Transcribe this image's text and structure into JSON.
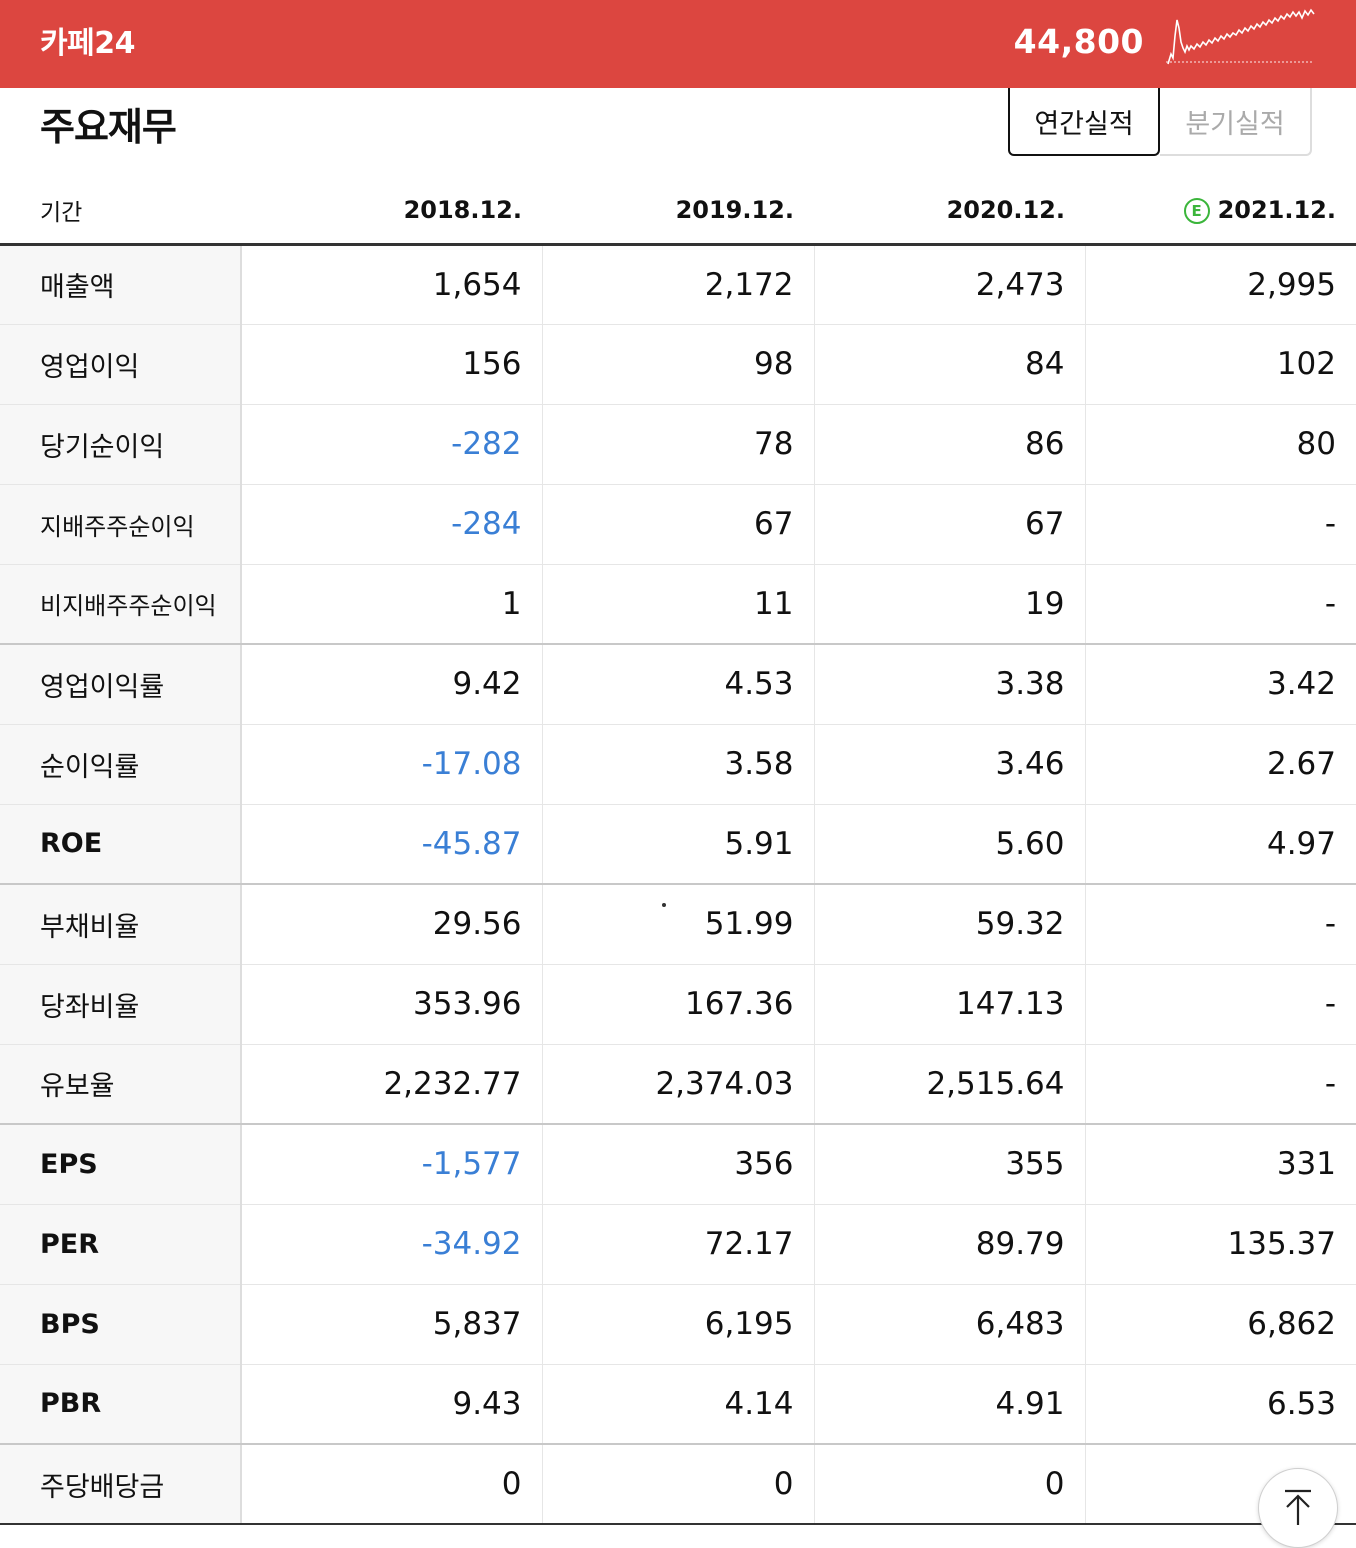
{
  "header": {
    "stock_name": "카페24",
    "price": "44,800"
  },
  "section": {
    "title": "주요재무",
    "tabs": [
      "연간실적",
      "분기실적"
    ]
  },
  "table": {
    "period_label": "기간",
    "estimate_badge": "E",
    "columns": [
      "2018.12.",
      "2019.12.",
      "2020.12.",
      "2021.12."
    ],
    "rows": [
      {
        "label": "매출액",
        "values": [
          "1,654",
          "2,172",
          "2,473",
          "2,995"
        ]
      },
      {
        "label": "영업이익",
        "values": [
          "156",
          "98",
          "84",
          "102"
        ]
      },
      {
        "label": "당기순이익",
        "values": [
          "-282",
          "78",
          "86",
          "80"
        ]
      },
      {
        "label": "지배주주순이익",
        "values": [
          "-284",
          "67",
          "67",
          "-"
        ]
      },
      {
        "label": "비지배주주순이익",
        "values": [
          "1",
          "11",
          "19",
          "-"
        ]
      },
      {
        "label": "영업이익률",
        "values": [
          "9.42",
          "4.53",
          "3.38",
          "3.42"
        ]
      },
      {
        "label": "순이익률",
        "values": [
          "-17.08",
          "3.58",
          "3.46",
          "2.67"
        ]
      },
      {
        "label": "ROE",
        "values": [
          "-45.87",
          "5.91",
          "5.60",
          "4.97"
        ]
      },
      {
        "label": "부채비율",
        "values": [
          "29.56",
          "51.99",
          "59.32",
          "-"
        ]
      },
      {
        "label": "당좌비율",
        "values": [
          "353.96",
          "167.36",
          "147.13",
          "-"
        ]
      },
      {
        "label": "유보율",
        "values": [
          "2,232.77",
          "2,374.03",
          "2,515.64",
          "-"
        ]
      },
      {
        "label": "EPS",
        "values": [
          "-1,577",
          "356",
          "355",
          "331"
        ]
      },
      {
        "label": "PER",
        "values": [
          "-34.92",
          "72.17",
          "89.79",
          "135.37"
        ]
      },
      {
        "label": "BPS",
        "values": [
          "5,837",
          "6,195",
          "6,483",
          "6,862"
        ]
      },
      {
        "label": "PBR",
        "values": [
          "9.43",
          "4.14",
          "4.91",
          "6.53"
        ]
      },
      {
        "label": "주당배당금",
        "values": [
          "0",
          "0",
          "0",
          ""
        ]
      }
    ]
  },
  "colors": {
    "header_bg": "#dc4640",
    "negative": "#3a7fd5",
    "estimate_badge": "#3bb53b"
  },
  "icons": {
    "sparkline": "price-sparkline-icon",
    "scroll_top": "arrow-up-icon"
  }
}
